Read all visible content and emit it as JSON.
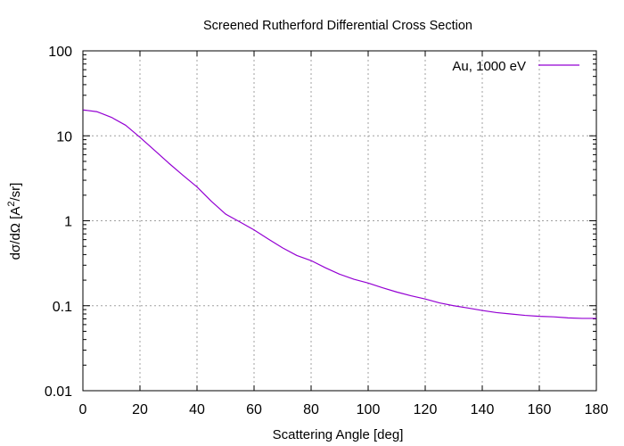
{
  "chart_data": {
    "type": "line",
    "title": "Screened Rutherford Differential Cross Section",
    "xlabel": "Scattering Angle [deg]",
    "ylabel": {
      "prefix": "dσ/dΩ  [A",
      "superscript": "2",
      "suffix": "/sr]"
    },
    "xlim": [
      0,
      180
    ],
    "ylim": [
      0.01,
      100
    ],
    "yscale": "log",
    "x_ticks": [
      0,
      20,
      40,
      60,
      80,
      100,
      120,
      140,
      160,
      180
    ],
    "x_tick_labels": [
      "0",
      "20",
      "40",
      "60",
      "80",
      "100",
      "120",
      "140",
      "160",
      "180"
    ],
    "y_ticks": [
      0.01,
      0.1,
      1,
      10,
      100
    ],
    "y_tick_labels": [
      "0.01",
      "0.1",
      "1",
      "10",
      "100"
    ],
    "grid": true,
    "legend_position": "top-right",
    "series": [
      {
        "name": "Au, 1000 eV",
        "color": "#9400d3",
        "x": [
          0,
          5,
          10,
          15,
          20,
          25,
          30,
          35,
          40,
          45,
          50,
          55,
          60,
          65,
          70,
          75,
          80,
          85,
          90,
          95,
          100,
          105,
          110,
          115,
          120,
          125,
          130,
          135,
          140,
          145,
          150,
          155,
          160,
          165,
          170,
          175,
          180
        ],
        "y": [
          20.2,
          19.2,
          16.5,
          13.3,
          9.6,
          6.8,
          4.8,
          3.45,
          2.5,
          1.7,
          1.2,
          0.97,
          0.78,
          0.61,
          0.48,
          0.39,
          0.34,
          0.28,
          0.235,
          0.205,
          0.185,
          0.163,
          0.145,
          0.131,
          0.12,
          0.108,
          0.1,
          0.094,
          0.088,
          0.083,
          0.08,
          0.077,
          0.075,
          0.074,
          0.072,
          0.071,
          0.071
        ]
      }
    ]
  }
}
